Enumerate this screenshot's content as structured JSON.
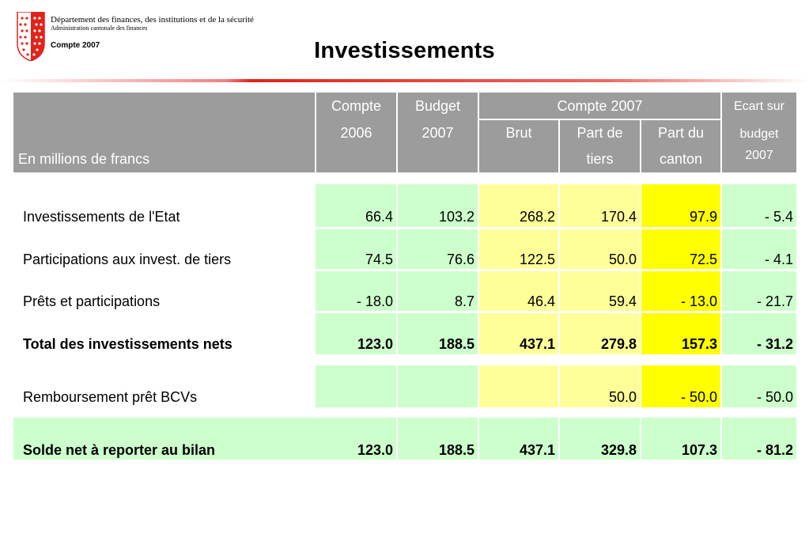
{
  "header": {
    "department": "Département des finances, des institutions et de la sécurité",
    "administration": "Administration cantonale des finances",
    "compte": "Compte 2007",
    "title": "Investissements"
  },
  "colors": {
    "header_bg": "#9c9c9c",
    "green": "#ccffcc",
    "light_yellow": "#ffff99",
    "yellow": "#ffff00",
    "accent_red": "#e2231a"
  },
  "table": {
    "unit_label": "En millions de francs",
    "columns": {
      "c2006": [
        "Compte",
        "2006"
      ],
      "b2007": [
        "Budget",
        "2007"
      ],
      "group": "Compte 2007",
      "brut": "Brut",
      "tiers": [
        "Part de",
        "tiers"
      ],
      "canton": [
        "Part du",
        "canton"
      ],
      "ecart": [
        "Ecart sur",
        "budget",
        "2007"
      ]
    },
    "rows": [
      {
        "label": "Investissements de l'Etat",
        "bold": false,
        "values": [
          "66.4",
          "103.2",
          "268.2",
          "170.4",
          "97.9",
          "- 5.4"
        ]
      },
      {
        "label": "Participations aux invest. de tiers",
        "bold": false,
        "values": [
          "74.5",
          "76.6",
          "122.5",
          "50.0",
          "72.5",
          "- 4.1"
        ]
      },
      {
        "label": "Prêts et participations",
        "bold": false,
        "values": [
          "- 18.0",
          "8.7",
          "46.4",
          "59.4",
          "- 13.0",
          "- 21.7"
        ]
      },
      {
        "label": "Total des investissements nets",
        "bold": true,
        "values": [
          "123.0",
          "188.5",
          "437.1",
          "279.8",
          "157.3",
          "- 31.2"
        ]
      },
      {
        "label": "Remboursement prêt BCVs",
        "bold": false,
        "values": [
          "",
          "",
          "",
          "50.0",
          "- 50.0",
          "- 50.0"
        ]
      },
      {
        "label": "Solde net à reporter au bilan",
        "bold": true,
        "values": [
          "123.0",
          "188.5",
          "437.1",
          "329.8",
          "107.3",
          "- 81.2"
        ]
      }
    ]
  }
}
